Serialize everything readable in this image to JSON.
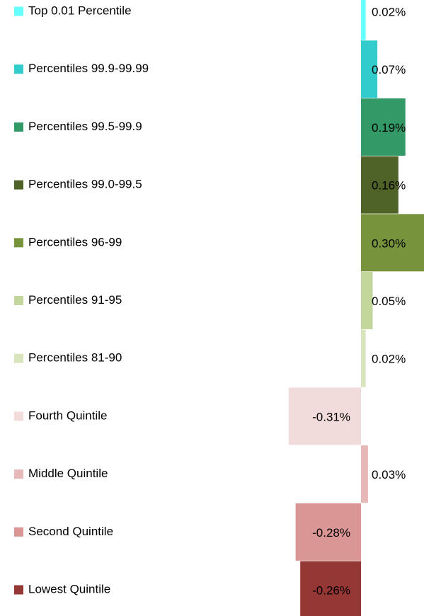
{
  "chart_data": {
    "type": "bar",
    "categories": [
      "Top 0.01 Percentile",
      "Percentiles 99.9-99.99",
      "Percentiles 99.5-99.9",
      "Percentiles 99.0-99.5",
      "Percentiles 96-99",
      "Percentiles 91-95",
      "Percentiles 81-90",
      "Fourth Quintile",
      "Middle Quintile",
      "Second Quintile",
      "Lowest Quintile"
    ],
    "values": [
      0.02,
      0.07,
      0.19,
      0.16,
      0.3,
      0.05,
      0.02,
      -0.31,
      0.03,
      -0.28,
      -0.26
    ],
    "value_labels": [
      "0.02%",
      "0.07%",
      "0.19%",
      "0.16%",
      "0.30%",
      "0.05%",
      "0.02%",
      "-0.31%",
      "0.03%",
      "-0.28%",
      "-0.26%"
    ],
    "colors": [
      "#66ffff",
      "#33cccc",
      "#339966",
      "#4f6228",
      "#77933c",
      "#c3d69b",
      "#d7e4bc",
      "#f2dcdb",
      "#e6b9b8",
      "#d99694",
      "#953735"
    ]
  }
}
